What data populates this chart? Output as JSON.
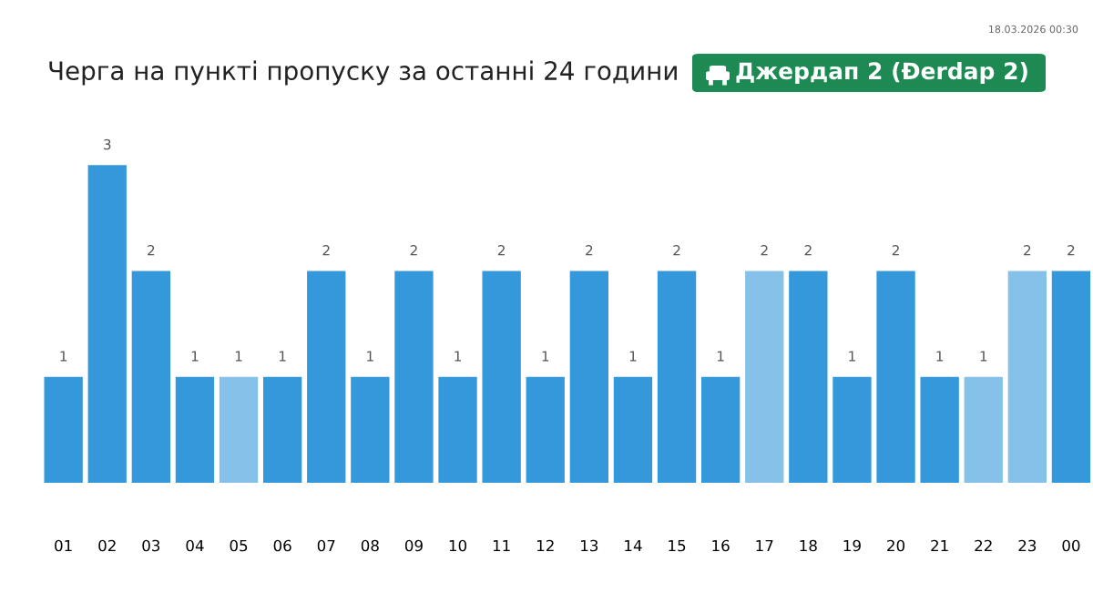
{
  "chart_data": {
    "type": "bar",
    "title": "Черга на пункті пропуску за останні 24 години",
    "subtitle": "Джердап 2 (Đerdap 2)",
    "categories": [
      "01",
      "02",
      "03",
      "04",
      "05",
      "06",
      "07",
      "08",
      "09",
      "10",
      "11",
      "12",
      "13",
      "14",
      "15",
      "16",
      "17",
      "18",
      "19",
      "20",
      "21",
      "22",
      "23",
      "00"
    ],
    "values": [
      1,
      3,
      2,
      1,
      1,
      1,
      2,
      1,
      2,
      1,
      2,
      1,
      2,
      1,
      2,
      1,
      2,
      2,
      1,
      2,
      1,
      1,
      2,
      2
    ],
    "colors": [
      "#3498db",
      "#3498db",
      "#3498db",
      "#3498db",
      "#85c1e9",
      "#3498db",
      "#3498db",
      "#3498db",
      "#3498db",
      "#3498db",
      "#3498db",
      "#3498db",
      "#3498db",
      "#3498db",
      "#3498db",
      "#3498db",
      "#85c1e9",
      "#3498db",
      "#3498db",
      "#3498db",
      "#3498db",
      "#85c1e9",
      "#85c1e9",
      "#3498db"
    ],
    "data_labels": true,
    "grid": false,
    "legend": false,
    "tick_labels": "x",
    "annotations": [
      "18.03.2026 00:30"
    ]
  }
}
